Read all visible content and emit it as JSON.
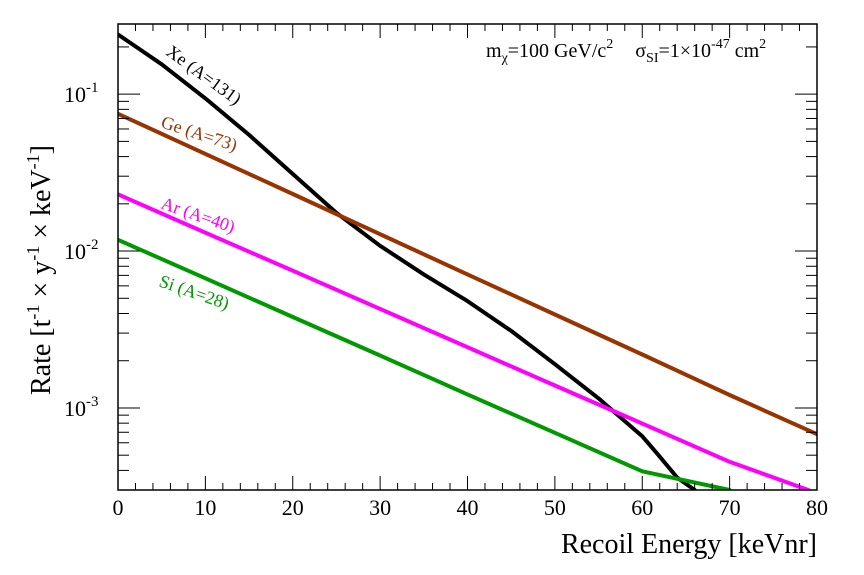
{
  "chart_data": {
    "type": "line",
    "xlabel": "Recoil Energy [keVnr]",
    "ylabel": "Rate [t-1 × y-1 × keV-1]",
    "ylabel_parts": {
      "prefix": "Rate [t",
      "sup1": "-1",
      "mid1": " × y",
      "sup2": "-1",
      "mid2": " × keV",
      "sup3": "-1",
      "suffix": "]"
    },
    "xlim": [
      0,
      80
    ],
    "ylim": [
      0.0003,
      0.28
    ],
    "yscale": "log",
    "grid": false,
    "x_ticks": [
      0,
      10,
      20,
      30,
      40,
      50,
      60,
      70,
      80
    ],
    "y_ticks": [
      {
        "value": 0.001,
        "base": "10",
        "exp": "-3"
      },
      {
        "value": 0.01,
        "base": "10",
        "exp": "-2"
      },
      {
        "value": 0.1,
        "base": "10",
        "exp": "-1"
      }
    ],
    "annotation": {
      "m_sym": "m",
      "m_sub": "χ",
      "m_val": "=100 GeV/c",
      "m_sup": "2",
      "s_sym": "σ",
      "s_sub": "SI",
      "s_val": "=1×10",
      "s_sup": "-47",
      "s_unit": " cm",
      "s_unit_sup": "2"
    },
    "series": [
      {
        "name": "Xe (A=131)",
        "color": "#000000",
        "x": [
          0,
          5,
          10,
          15,
          20,
          25,
          30,
          35,
          40,
          45,
          50,
          55,
          60,
          62,
          64,
          66
        ],
        "y": [
          0.24,
          0.155,
          0.094,
          0.055,
          0.031,
          0.0175,
          0.0108,
          0.0071,
          0.0048,
          0.0031,
          0.0019,
          0.00115,
          0.00066,
          0.00049,
          0.00036,
          0.0003
        ]
      },
      {
        "name": "Ge (A=73)",
        "color": "#993300",
        "x": [
          0,
          10,
          20,
          30,
          40,
          50,
          60,
          70,
          80
        ],
        "y": [
          0.075,
          0.0416,
          0.0231,
          0.0128,
          0.0071,
          0.00394,
          0.00219,
          0.00121,
          0.00068
        ]
      },
      {
        "name": "Ar (A=40)",
        "color": "#ff00ff",
        "x": [
          0,
          10,
          20,
          30,
          40,
          50,
          60,
          70,
          79
        ],
        "y": [
          0.023,
          0.0131,
          0.0075,
          0.00428,
          0.00244,
          0.00139,
          0.000795,
          0.000454,
          0.0003
        ]
      },
      {
        "name": "Si (A=28)",
        "color": "#009900",
        "x": [
          0,
          10,
          20,
          30,
          40,
          50,
          60,
          70
        ],
        "y": [
          0.0118,
          0.0067,
          0.0038,
          0.00216,
          0.00122,
          0.000695,
          0.000395,
          0.0003
        ]
      }
    ]
  }
}
